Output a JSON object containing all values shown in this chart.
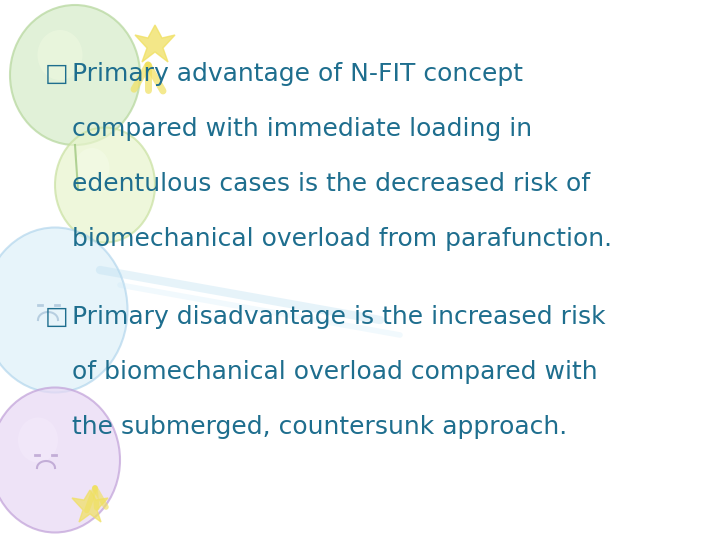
{
  "background_color": "#ffffff",
  "text_color": "#1e6e8e",
  "font_size": 18,
  "fig_width": 7.2,
  "fig_height": 5.4,
  "dpi": 100,
  "bullet1_line1": "Primary advantage of N-FIT concept",
  "bullet1_line2": "compared with immediate loading in",
  "bullet1_line3": "edentulous cases is the decreased risk of",
  "bullet1_line4": "biomechanical overload from parafunction.",
  "bullet2_line1": "Primary disadvantage is the increased risk",
  "bullet2_line2": "of biomechanical overload compared with",
  "bullet2_line3": "the submerged, countersunk approach.",
  "balloon1_color": "#d8edcc",
  "balloon1_edge": "#b8d8a0",
  "balloon2_color": "#e8f4cc",
  "balloon2_edge": "#c8e0a0",
  "balloon3_color": "#d8eef8",
  "balloon3_edge": "#b0d4ee",
  "balloon4_color": "#e8d8f4",
  "balloon4_edge": "#c8b0e0",
  "yellow_color": "#f0e060"
}
